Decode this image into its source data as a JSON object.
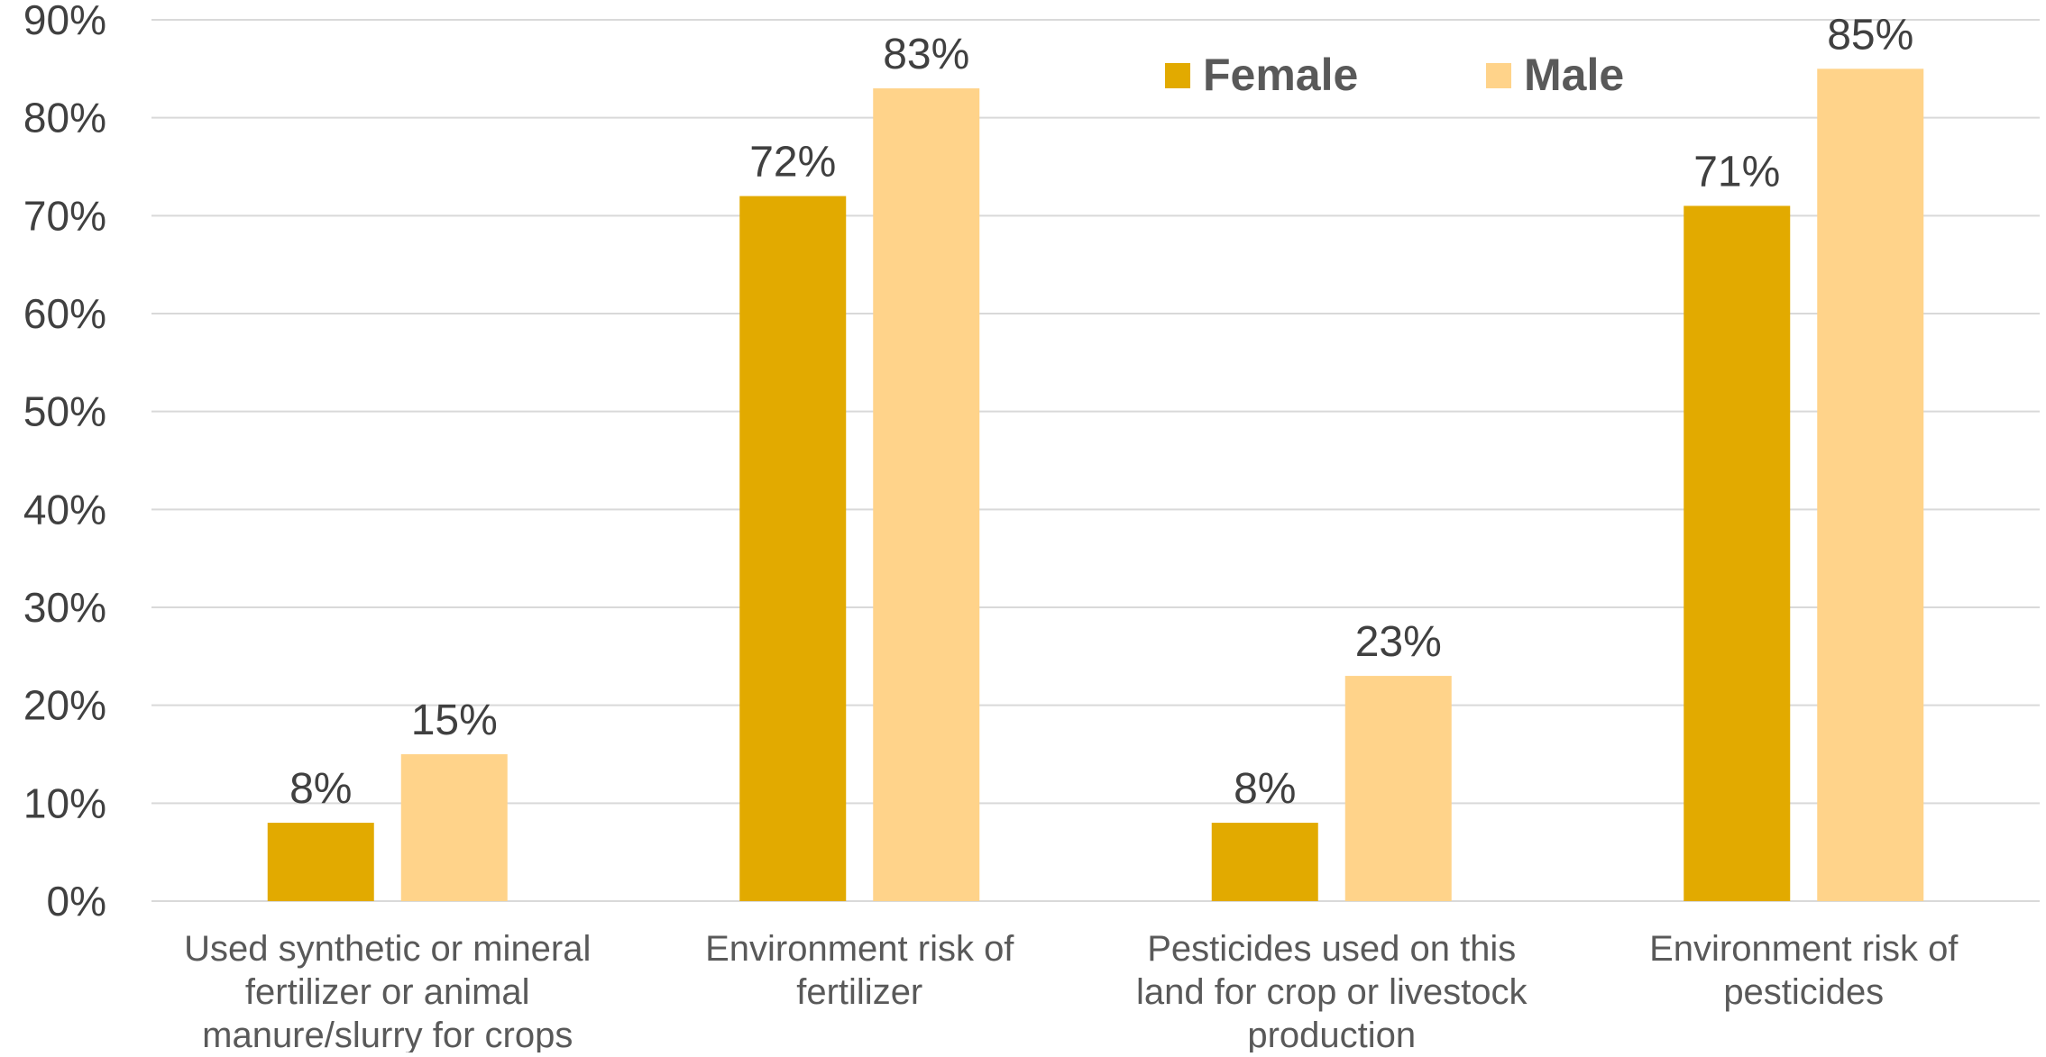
{
  "chart_data": {
    "type": "bar",
    "categories": [
      [
        "Used synthetic or mineral",
        "fertilizer or animal",
        "manure/slurry for crops"
      ],
      [
        "Environment risk of",
        "fertilizer"
      ],
      [
        "Pesticides used on this",
        "land for crop or livestock",
        "production"
      ],
      [
        "Environment risk of",
        "pesticides"
      ]
    ],
    "series": [
      {
        "name": "Female",
        "values": [
          8,
          72,
          8,
          71
        ],
        "labels": [
          "8%",
          "72%",
          "8%",
          "71%"
        ],
        "color": "#E2AA00"
      },
      {
        "name": "Male",
        "values": [
          15,
          83,
          23,
          85
        ],
        "labels": [
          "15%",
          "83%",
          "23%",
          "85%"
        ],
        "color": "#FFD38A"
      }
    ],
    "ylim": [
      0,
      90
    ],
    "yticks": [
      "0%",
      "10%",
      "20%",
      "30%",
      "40%",
      "50%",
      "60%",
      "70%",
      "80%",
      "90%"
    ],
    "grid": true,
    "gridline_color": "#D9D9D9",
    "legend_position": "top-right"
  }
}
